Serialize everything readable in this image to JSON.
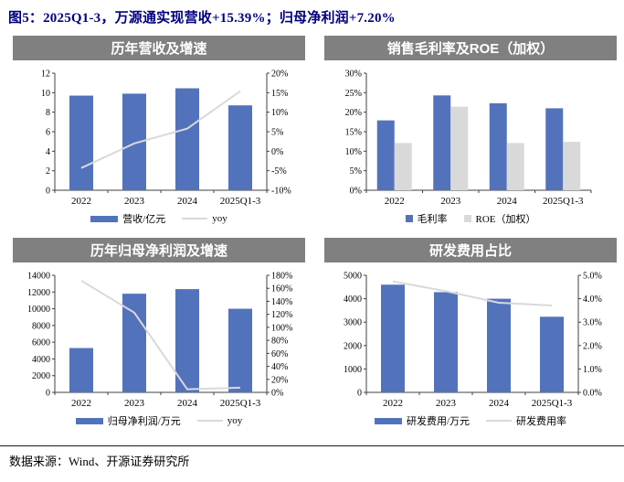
{
  "page": {
    "title": "图5：2025Q1-3，万源通实现营收+15.39%；归母净利润+7.20%",
    "source": "数据来源：Wind、开源证券研究所"
  },
  "colors": {
    "bar_blue": "#5273BC",
    "bar_gray": "#D9D9D9",
    "line_gray": "#D9D9D9",
    "header_bg": "#808080",
    "header_text": "#FFFFFF",
    "title_text": "#000080",
    "axis": "#404040"
  },
  "chart_data": [
    {
      "id": "revenue",
      "type": "bar+line",
      "title": "历年营收及增速",
      "categories": [
        "2022",
        "2023",
        "2024",
        "2025Q1-3"
      ],
      "bars": [
        {
          "name": "营收/亿元",
          "values": [
            9.7,
            9.9,
            10.45,
            8.7
          ],
          "color": "#5273BC",
          "marker": "bar"
        }
      ],
      "lines": [
        {
          "name": "yoy",
          "values": [
            -4.3,
            2.0,
            5.8,
            15.39
          ],
          "color": "#D9D9D9",
          "axis": "right"
        }
      ],
      "left_axis": {
        "min": 0,
        "max": 12,
        "step": 2,
        "format": "num"
      },
      "right_axis": {
        "min": -10,
        "max": 20,
        "step": 5,
        "format": "pct0"
      },
      "legend_position": "bottom",
      "grid": false
    },
    {
      "id": "margin-roe",
      "type": "bar",
      "title": "销售毛利率及ROE（加权）",
      "categories": [
        "2022",
        "2023",
        "2024",
        "2025Q1-3"
      ],
      "bars": [
        {
          "name": "毛利率",
          "values": [
            17.9,
            24.3,
            22.3,
            21.0
          ],
          "color": "#5273BC",
          "marker": "square"
        },
        {
          "name": "ROE（加权）",
          "values": [
            12.1,
            21.4,
            12.1,
            12.4
          ],
          "color": "#D9D9D9",
          "marker": "square"
        }
      ],
      "lines": [],
      "left_axis": {
        "min": 0,
        "max": 30,
        "step": 5,
        "format": "pct0"
      },
      "legend_position": "bottom",
      "grid": false
    },
    {
      "id": "net-profit",
      "type": "bar+line",
      "title": "历年归母净利润及增速",
      "categories": [
        "2022",
        "2023",
        "2024",
        "2025Q1-3"
      ],
      "bars": [
        {
          "name": "归母净利润/万元",
          "values": [
            5300,
            11800,
            12350,
            10000
          ],
          "color": "#5273BC",
          "marker": "bar"
        }
      ],
      "lines": [
        {
          "name": "yoy",
          "values": [
            171.7,
            122.6,
            4.7,
            7.2
          ],
          "color": "#D9D9D9",
          "axis": "right"
        }
      ],
      "left_axis": {
        "min": 0,
        "max": 14000,
        "step": 2000,
        "format": "num"
      },
      "right_axis": {
        "min": 0,
        "max": 180,
        "step": 20,
        "format": "pct0"
      },
      "legend_position": "bottom",
      "grid": false
    },
    {
      "id": "rnd",
      "type": "bar+line",
      "title": "研发费用占比",
      "categories": [
        "2022",
        "2023",
        "2024",
        "2025Q1-3"
      ],
      "bars": [
        {
          "name": "研发费用/万元",
          "values": [
            4600,
            4280,
            4000,
            3230
          ],
          "color": "#5273BC",
          "marker": "bar"
        }
      ],
      "lines": [
        {
          "name": "研发费用率",
          "values": [
            4.74,
            4.32,
            3.83,
            3.71
          ],
          "color": "#D9D9D9",
          "axis": "right"
        }
      ],
      "left_axis": {
        "min": 0,
        "max": 5000,
        "step": 1000,
        "format": "num"
      },
      "right_axis": {
        "min": 0,
        "max": 5,
        "step": 1,
        "format": "pct1"
      },
      "legend_position": "bottom",
      "grid": false
    }
  ]
}
